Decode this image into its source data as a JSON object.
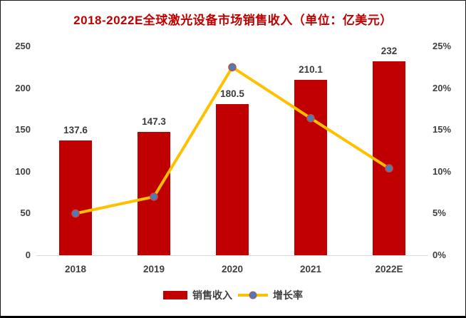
{
  "title": "2018-2022E全球激光设备市场销售收入（单位：亿美元）",
  "colors": {
    "title": "#C00000",
    "bar": "#C00000",
    "line": "#FFC000",
    "marker_fill": "#4A7EBB",
    "marker_stroke": "#C0504D",
    "axis_text": "#404040",
    "baseline": "#D9D9D9"
  },
  "legend": {
    "items": [
      {
        "label": "销售收入",
        "type": "bar"
      },
      {
        "label": "增长率",
        "type": "line"
      }
    ]
  },
  "chart_data": {
    "type": "bar",
    "subtype": "bar+line combo",
    "title": "2018-2022E全球激光设备市场销售收入（单位：亿美元）",
    "categories": [
      "2018",
      "2019",
      "2020",
      "2021",
      "2022E"
    ],
    "series": [
      {
        "name": "销售收入",
        "type": "bar",
        "axis": "left",
        "values": [
          137.6,
          147.3,
          180.5,
          210.1,
          232
        ],
        "labels": [
          "137.6",
          "147.3",
          "180.5",
          "210.1",
          "232"
        ]
      },
      {
        "name": "增长率",
        "type": "line",
        "axis": "right",
        "values": [
          5.0,
          7.0,
          22.5,
          16.4,
          10.4
        ]
      }
    ],
    "left_axis": {
      "min": 0,
      "max": 250,
      "ticks": [
        "0",
        "50",
        "100",
        "150",
        "200",
        "250"
      ]
    },
    "right_axis": {
      "min": 0,
      "max": 25,
      "ticks": [
        "0%",
        "5%",
        "10%",
        "15%",
        "20%",
        "25%"
      ]
    },
    "grid": false,
    "legend_position": "bottom"
  }
}
